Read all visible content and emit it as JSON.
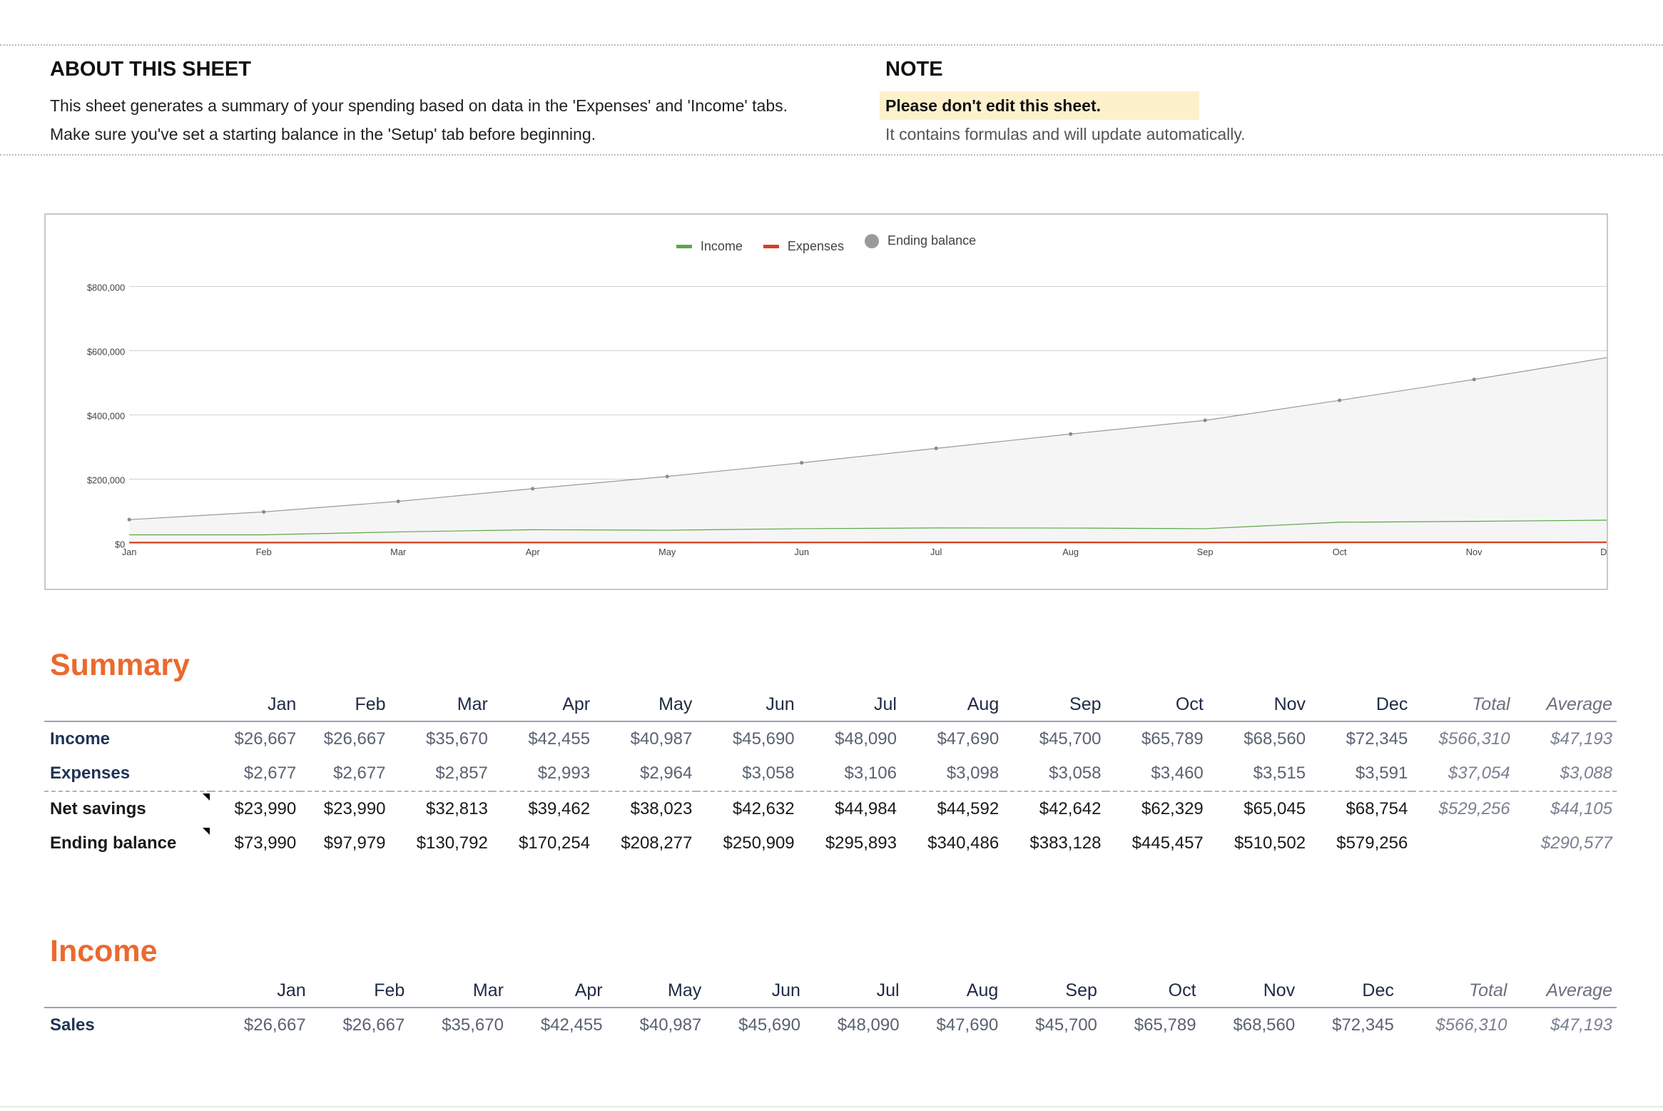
{
  "about": {
    "title": "ABOUT THIS SHEET",
    "line1": "This sheet generates a summary of your spending based on data in the 'Expenses' and 'Income' tabs.",
    "line2": "Make sure you've set a starting balance in the 'Setup' tab before beginning."
  },
  "note": {
    "title": "NOTE",
    "highlight": "Please don't edit this sheet.",
    "sub": "It contains formulas and will update automatically."
  },
  "colors": {
    "income": "#5aa846",
    "expenses": "#d6401e",
    "balance": "#9a9a9a",
    "accent": "#ea6a2e"
  },
  "chart_data": {
    "type": "line",
    "categories": [
      "Jan",
      "Feb",
      "Mar",
      "Apr",
      "May",
      "Jun",
      "Jul",
      "Aug",
      "Sep",
      "Oct",
      "Nov",
      "Dec"
    ],
    "series": [
      {
        "name": "Income",
        "values": [
          26667,
          26667,
          35670,
          42455,
          40987,
          45690,
          48090,
          47690,
          45700,
          65789,
          68560,
          72345
        ]
      },
      {
        "name": "Expenses",
        "values": [
          2677,
          2677,
          2857,
          2993,
          2964,
          3058,
          3106,
          3098,
          3058,
          3460,
          3515,
          3591
        ]
      },
      {
        "name": "Ending balance",
        "values": [
          73990,
          97979,
          130792,
          170254,
          208277,
          250909,
          295893,
          340486,
          383128,
          445457,
          510502,
          579256
        ]
      }
    ],
    "y_ticks": [
      "$0",
      "$200,000",
      "$400,000",
      "$600,000",
      "$800,000"
    ],
    "ylim": [
      0,
      800000
    ],
    "legend_position": "top-center",
    "grid": true
  },
  "summary": {
    "title": "Summary",
    "headers": [
      "",
      "Jan",
      "Feb",
      "Mar",
      "Apr",
      "May",
      "Jun",
      "Jul",
      "Aug",
      "Sep",
      "Oct",
      "Nov",
      "Dec",
      "Total",
      "Average"
    ],
    "rows": [
      {
        "label": "Income",
        "values": [
          "$26,667",
          "$26,667",
          "$35,670",
          "$42,455",
          "$40,987",
          "$45,690",
          "$48,090",
          "$47,690",
          "$45,700",
          "$65,789",
          "$68,560",
          "$72,345"
        ],
        "total": "$566,310",
        "average": "$47,193"
      },
      {
        "label": "Expenses",
        "values": [
          "$2,677",
          "$2,677",
          "$2,857",
          "$2,993",
          "$2,964",
          "$3,058",
          "$3,106",
          "$3,098",
          "$3,058",
          "$3,460",
          "$3,515",
          "$3,591"
        ],
        "total": "$37,054",
        "average": "$3,088"
      },
      {
        "label": "Net savings",
        "values": [
          "$23,990",
          "$23,990",
          "$32,813",
          "$39,462",
          "$38,023",
          "$42,632",
          "$44,984",
          "$44,592",
          "$42,642",
          "$62,329",
          "$65,045",
          "$68,754"
        ],
        "total": "$529,256",
        "average": "$44,105"
      },
      {
        "label": "Ending balance",
        "values": [
          "$73,990",
          "$97,979",
          "$130,792",
          "$170,254",
          "$208,277",
          "$250,909",
          "$295,893",
          "$340,486",
          "$383,128",
          "$445,457",
          "$510,502",
          "$579,256"
        ],
        "total": "",
        "average": "$290,577"
      }
    ]
  },
  "income": {
    "title": "Income",
    "headers": [
      "",
      "Jan",
      "Feb",
      "Mar",
      "Apr",
      "May",
      "Jun",
      "Jul",
      "Aug",
      "Sep",
      "Oct",
      "Nov",
      "Dec",
      "Total",
      "Average"
    ],
    "rows": [
      {
        "label": "Sales",
        "values": [
          "$26,667",
          "$26,667",
          "$35,670",
          "$42,455",
          "$40,987",
          "$45,690",
          "$48,090",
          "$47,690",
          "$45,700",
          "$65,789",
          "$68,560",
          "$72,345"
        ],
        "total": "$566,310",
        "average": "$47,193"
      }
    ]
  }
}
